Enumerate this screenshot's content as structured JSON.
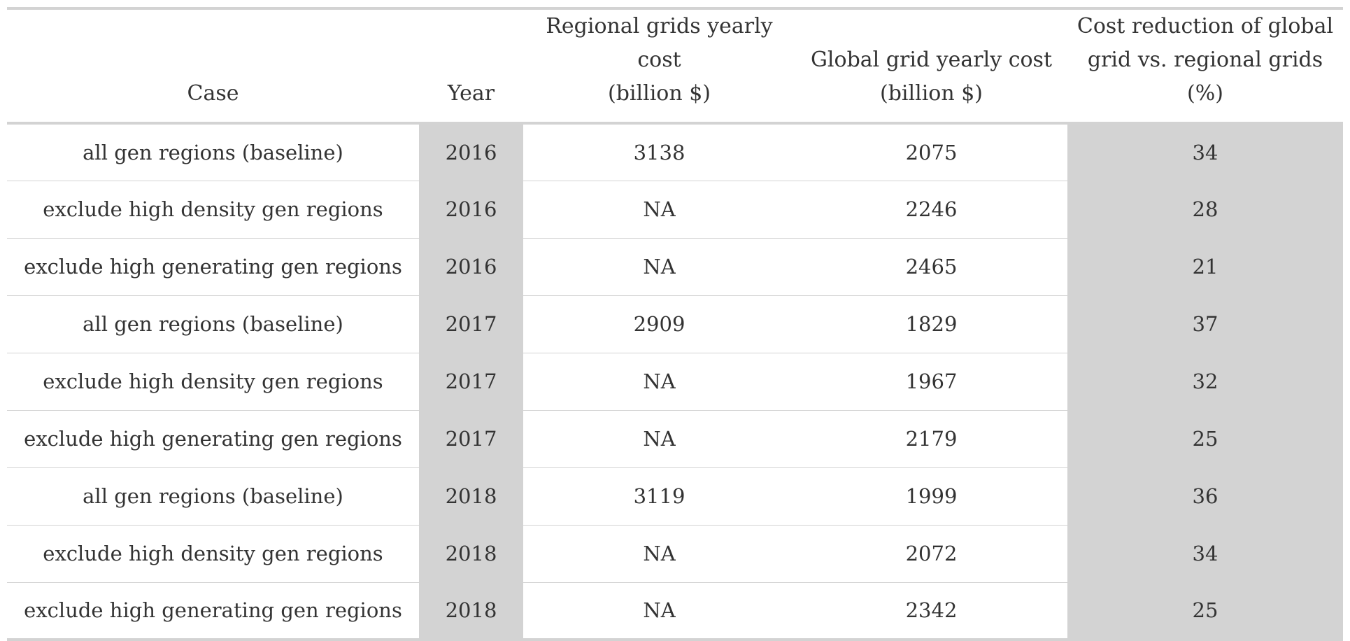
{
  "table": {
    "headers": {
      "case": "Case",
      "year": "Year",
      "regional_line1": "Regional grids yearly cost",
      "regional_line2": "(billion $)",
      "global_line1": "Global grid yearly cost",
      "global_line2": "(billion $)",
      "reduction_line1": "Cost reduction of global",
      "reduction_line2": "grid vs. regional grids (%)"
    },
    "rows": [
      {
        "case": "all gen regions (baseline)",
        "year": "2016",
        "regional": "3138",
        "global": "2075",
        "reduction": "34"
      },
      {
        "case": "exclude high density gen regions",
        "year": "2016",
        "regional": "NA",
        "global": "2246",
        "reduction": "28"
      },
      {
        "case": "exclude high generating gen regions",
        "year": "2016",
        "regional": "NA",
        "global": "2465",
        "reduction": "21"
      },
      {
        "case": "all gen regions (baseline)",
        "year": "2017",
        "regional": "2909",
        "global": "1829",
        "reduction": "37"
      },
      {
        "case": "exclude high density gen regions",
        "year": "2017",
        "regional": "NA",
        "global": "1967",
        "reduction": "32"
      },
      {
        "case": "exclude high generating gen regions",
        "year": "2017",
        "regional": "NA",
        "global": "2179",
        "reduction": "25"
      },
      {
        "case": "all gen regions (baseline)",
        "year": "2018",
        "regional": "3119",
        "global": "1999",
        "reduction": "36"
      },
      {
        "case": "exclude high density gen regions",
        "year": "2018",
        "regional": "NA",
        "global": "2072",
        "reduction": "34"
      },
      {
        "case": "exclude high generating gen regions",
        "year": "2018",
        "regional": "NA",
        "global": "2342",
        "reduction": "25"
      }
    ]
  },
  "colors": {
    "shaded_column": "#d3d3d3",
    "rule": "#d3d3d3",
    "text": "#333333"
  }
}
